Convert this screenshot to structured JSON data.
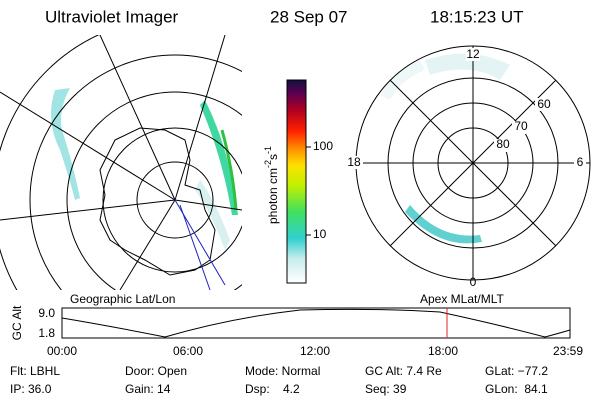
{
  "header": {
    "instrument": "Ultraviolet Imager",
    "date": "28 Sep 07",
    "time": "18:15:23 UT"
  },
  "colorbar": {
    "unit": "photon cm",
    "exp1": "-2",
    "mid": "s",
    "exp2": "-1",
    "ticks": [
      "100",
      "10"
    ]
  },
  "polar": {
    "top": "12",
    "left": "18",
    "right": "6",
    "bottom": "0",
    "rings": [
      "60",
      "70",
      "80"
    ]
  },
  "altitude_plot": {
    "left_title": "Geographic Lat/Lon",
    "right_title": "Apex MLat/MLT",
    "y_label": "GC Alt",
    "y_ticks": [
      "9.0",
      "1.8"
    ],
    "x_ticks": [
      "00:00",
      "06:00",
      "12:00",
      "18:00",
      "23:59"
    ]
  },
  "info": [
    [
      "Flt: LBHL",
      "Door: Open",
      "Mode: Normal",
      "GC Alt: 7.4 Re",
      "GLat: −77.2"
    ],
    [
      "IP: 36.0",
      "Gain: 14",
      "Dsp:    4.2",
      "Seq: 39",
      "GLon:  84.1"
    ]
  ]
}
